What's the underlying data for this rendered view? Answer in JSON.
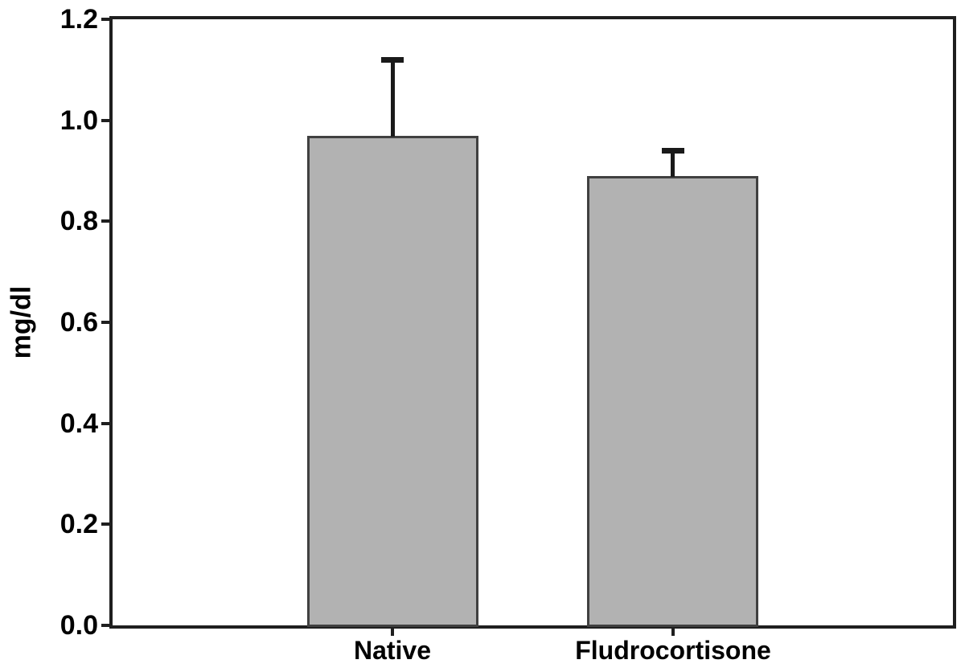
{
  "chart_data": {
    "type": "bar",
    "categories": [
      "Native",
      "Fludrocortisone"
    ],
    "values": [
      0.97,
      0.89
    ],
    "errors_plus": [
      0.15,
      0.05
    ],
    "title": "",
    "xlabel": "",
    "ylabel": "mg/dl",
    "ylim": [
      0,
      1.2
    ],
    "ytick_step": 0.2,
    "ytick_labels": [
      "0.0",
      "0.2",
      "0.4",
      "0.6",
      "0.8",
      "1.0",
      "1.2"
    ],
    "grid": false,
    "legend": null,
    "colors": {
      "bar_fill": "#b2b2b2",
      "bar_border": "#404040",
      "axis": "#1f1f1f",
      "error_bar": "#1a1a1a",
      "text": "#000000",
      "background": "#ffffff"
    }
  }
}
